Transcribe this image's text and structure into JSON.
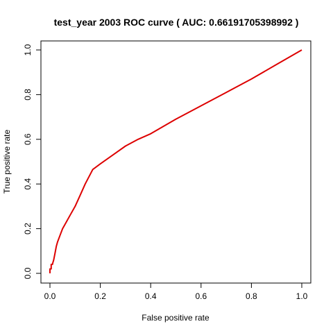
{
  "chart_data": {
    "type": "line",
    "title": "test_year 2003  ROC curve ( AUC: 0.66191705398992 )",
    "xlabel": "False positive rate",
    "ylabel": "True positive rate",
    "xlim": [
      0,
      1
    ],
    "ylim": [
      0,
      1
    ],
    "xticks": [
      "0.0",
      "0.2",
      "0.4",
      "0.6",
      "0.8",
      "1.0"
    ],
    "yticks": [
      "0.0",
      "0.2",
      "0.4",
      "0.6",
      "0.8",
      "1.0"
    ],
    "grid": false,
    "legend": "none",
    "series": [
      {
        "color": "#dd0000",
        "x": [
          0,
          0,
          0.005,
          0.005,
          0.01,
          0.012,
          0.015,
          0.02,
          0.025,
          0.03,
          0.04,
          0.05,
          0.06,
          0.08,
          0.1,
          0.12,
          0.14,
          0.17,
          0.2,
          0.25,
          0.3,
          0.35,
          0.4,
          0.5,
          0.6,
          0.7,
          0.8,
          0.9,
          1.0
        ],
        "y": [
          0,
          0.02,
          0.02,
          0.04,
          0.04,
          0.05,
          0.06,
          0.09,
          0.12,
          0.14,
          0.17,
          0.2,
          0.22,
          0.26,
          0.3,
          0.35,
          0.4,
          0.465,
          0.49,
          0.53,
          0.57,
          0.6,
          0.625,
          0.69,
          0.75,
          0.81,
          0.87,
          0.935,
          1.0
        ]
      }
    ]
  }
}
